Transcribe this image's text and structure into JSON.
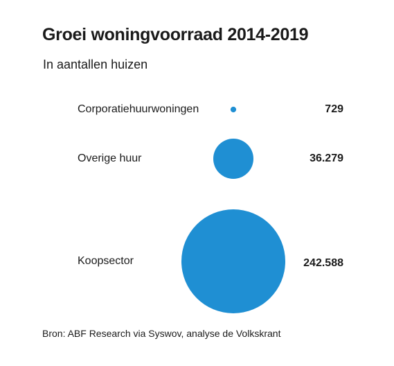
{
  "chart_data": {
    "type": "bubble",
    "title": "Groei woningvoorraad 2014-2019",
    "subtitle": "In aantallen huizen",
    "source": "Bron: ABF Research via Syswov, analyse de Volkskrant",
    "color": "#1f8fd3",
    "categories": [
      "Corporatiehuurwoningen",
      "Overige huur",
      "Koopsector"
    ],
    "values": [
      729,
      36279,
      242588
    ],
    "value_labels": [
      "729",
      "36.279",
      "242.588"
    ]
  }
}
